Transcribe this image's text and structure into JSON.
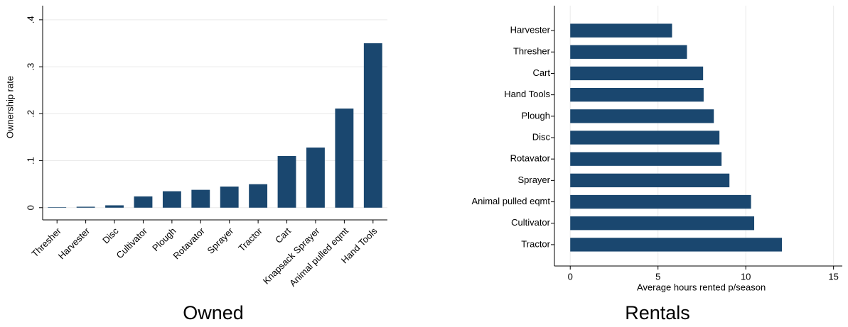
{
  "chart_data": [
    {
      "type": "bar",
      "orientation": "vertical",
      "title": "Owned",
      "y_label": "Ownership rate",
      "color": "#1a476f",
      "grid": true,
      "categories": [
        "Thresher",
        "Harvester",
        "Disc",
        "Cultivator",
        "Plough",
        "Rotavator",
        "Sprayer",
        "Tractor",
        "Cart",
        "Knapsack Sprayer",
        "Animal pulled eqmt",
        "Hand Tools"
      ],
      "values": [
        0.001,
        0.002,
        0.005,
        0.024,
        0.035,
        0.038,
        0.045,
        0.05,
        0.11,
        0.128,
        0.211,
        0.35
      ],
      "ylim": [
        -0.026,
        0.43
      ],
      "yticks": [
        0,
        {
          "value": 0.1,
          "label": ".1"
        },
        {
          "value": 0.2,
          "label": ".2"
        },
        {
          "value": 0.3,
          "label": ".3"
        },
        {
          "value": 0.4,
          "label": ".4"
        }
      ]
    },
    {
      "type": "bar",
      "orientation": "horizontal",
      "title": "Rentals",
      "x_label": "Average hours rented p/season",
      "color": "#1a476f",
      "grid": true,
      "categories": [
        "Harvester",
        "Thresher",
        "Cart",
        "Hand Tools",
        "Plough",
        "Disc",
        "Rotavator",
        "Sprayer",
        "Animal pulled eqmt",
        "Cultivator",
        "Tractor"
      ],
      "values": [
        5.8,
        6.65,
        7.57,
        7.6,
        8.18,
        8.5,
        8.62,
        9.07,
        10.3,
        10.48,
        12.06
      ],
      "xlim": [
        -0.9,
        15.5
      ],
      "xticks": [
        0,
        5,
        10,
        15
      ]
    }
  ]
}
